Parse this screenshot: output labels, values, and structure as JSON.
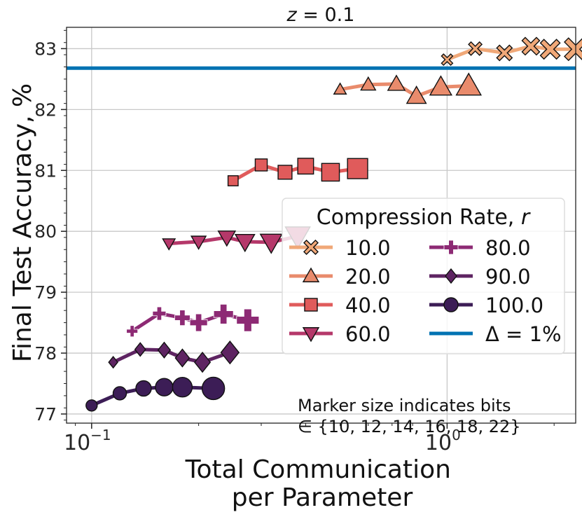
{
  "chart_data": {
    "type": "scatter",
    "title": "z = 0.1",
    "xlabel_lines": [
      "Total Communication",
      "per Parameter"
    ],
    "ylabel": "Final Test Accuracy, %",
    "x_scale": "log",
    "xlim": [
      0.085,
      2.3
    ],
    "ylim": [
      76.85,
      83.35
    ],
    "x_ticks": [
      {
        "value": 0.1,
        "base": "10",
        "exp": "−1"
      },
      {
        "value": 1.0,
        "base": "10",
        "exp": "0"
      }
    ],
    "y_ticks": [
      77,
      78,
      79,
      80,
      81,
      82,
      83
    ],
    "grid": true,
    "legend": {
      "title": "Compression Rate, ",
      "title_var": "r",
      "placement": "right",
      "baseline_label": "Δ = 1%"
    },
    "baseline": {
      "y": 82.68,
      "color": "#0072b2"
    },
    "note_lines": [
      "Marker size indicates bits",
      "∈ {10, 12, 14, 16, 18, 22}"
    ],
    "series": [
      {
        "name": "10.0",
        "marker": "x",
        "color": "#f0a878",
        "x": [
          1.0,
          1.2,
          1.45,
          1.72,
          1.95,
          2.3
        ],
        "y": [
          82.82,
          83.0,
          82.93,
          83.04,
          82.99,
          82.99
        ]
      },
      {
        "name": "20.0",
        "marker": "^",
        "color": "#e98b6c",
        "x": [
          0.5,
          0.6,
          0.72,
          0.82,
          0.96,
          1.15
        ],
        "y": [
          82.33,
          82.41,
          82.42,
          82.22,
          82.37,
          82.39
        ]
      },
      {
        "name": "40.0",
        "marker": "s",
        "color": "#e05b5b",
        "x": [
          0.25,
          0.3,
          0.35,
          0.4,
          0.47,
          0.56
        ],
        "y": [
          80.83,
          81.09,
          80.97,
          81.07,
          80.97,
          81.03
        ]
      },
      {
        "name": "60.0",
        "marker": "v",
        "color": "#b5386a",
        "x": [
          0.165,
          0.2,
          0.24,
          0.27,
          0.32,
          0.38
        ],
        "y": [
          79.8,
          79.83,
          79.9,
          79.83,
          79.82,
          79.92
        ]
      },
      {
        "name": "80.0",
        "marker": "P",
        "color": "#8d2a74",
        "x": [
          0.13,
          0.155,
          0.18,
          0.2,
          0.235,
          0.275
        ],
        "y": [
          78.36,
          78.65,
          78.58,
          78.5,
          78.64,
          78.54
        ]
      },
      {
        "name": "90.0",
        "marker": "D",
        "color": "#5e2462",
        "x": [
          0.115,
          0.137,
          0.16,
          0.18,
          0.205,
          0.245
        ],
        "y": [
          77.85,
          78.06,
          78.05,
          77.92,
          77.85,
          78.01
        ]
      },
      {
        "name": "100.0",
        "marker": "o",
        "color": "#3c1d56",
        "x": [
          0.1,
          0.12,
          0.14,
          0.16,
          0.18,
          0.22
        ],
        "y": [
          77.14,
          77.34,
          77.42,
          77.44,
          77.44,
          77.42
        ]
      }
    ]
  }
}
